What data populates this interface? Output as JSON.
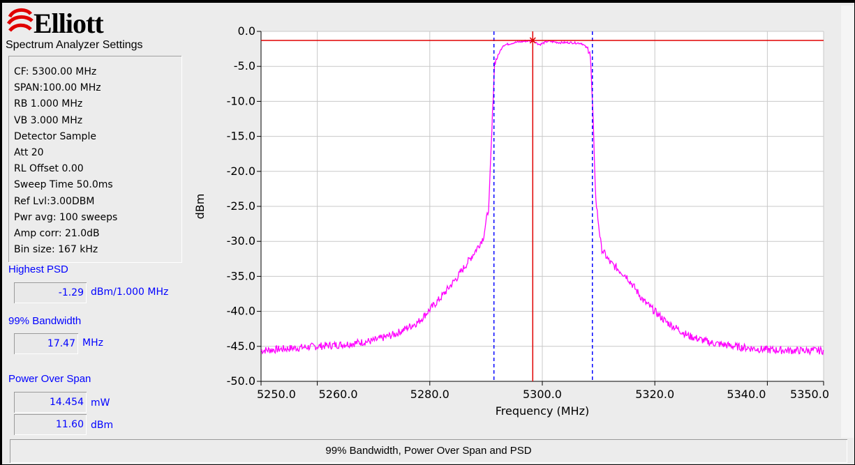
{
  "brand": {
    "name": "Elliott"
  },
  "settings": {
    "title": "Spectrum Analyzer Settings",
    "items": [
      "CF: 5300.00 MHz",
      "SPAN:100.00 MHz",
      "RB 1.000 MHz",
      "VB 3.000 MHz",
      "Detector Sample",
      "Att 20",
      "RL Offset 0.00",
      "Sweep Time 50.0ms",
      "Ref Lvl:3.00DBM",
      "Pwr avg: 100 sweeps",
      "Amp corr: 21.0dB",
      "Bin size: 167 kHz"
    ]
  },
  "results": {
    "psd_label": "Highest PSD",
    "psd_value": "-1.29",
    "psd_unit": "dBm/1.000 MHz",
    "bw_label": "99% Bandwidth",
    "bw_value": "17.47",
    "bw_unit": "MHz",
    "power_label": "Power Over Span",
    "power_mw_value": "14.454",
    "power_mw_unit": "mW",
    "power_dbm_value": "11.60",
    "power_dbm_unit": "dBm"
  },
  "status": {
    "text": "99% Bandwidth, Power Over Span and PSD"
  },
  "colors": {
    "trace": "#ff00ff",
    "marker": "#e00000",
    "bw_lines": "#0000ff",
    "grid": "#c8c8c8"
  },
  "chart_data": {
    "type": "line",
    "xlabel": "Frequency (MHz)",
    "ylabel": "dBm",
    "xlim": [
      5250,
      5350
    ],
    "ylim": [
      -50,
      0
    ],
    "x_ticks": [
      5250,
      5260,
      5280,
      5300,
      5320,
      5340,
      5350
    ],
    "x_tick_labels": [
      "5250.0",
      "5260.0",
      "5280.0",
      "5300.0",
      "5320.0",
      "5340.0",
      "5350.0"
    ],
    "y_ticks": [
      0,
      -5,
      -10,
      -15,
      -20,
      -25,
      -30,
      -35,
      -40,
      -45,
      -50
    ],
    "y_tick_labels": [
      "0.0",
      "-5.0",
      "-10.0",
      "-15.0",
      "-20.0",
      "-25.0",
      "-30.0",
      "-35.0",
      "-40.0",
      "-45.0",
      "-50.0"
    ],
    "grid": true,
    "series": [
      {
        "x": [
          5250,
          5255,
          5260,
          5265,
          5270,
          5274,
          5278,
          5282,
          5285,
          5288,
          5289.5,
          5290.5,
          5291,
          5291.5,
          5293,
          5295,
          5297,
          5298.3,
          5299.5,
          5301,
          5303,
          5305,
          5307,
          5308.5,
          5309,
          5309.5,
          5310.5,
          5312,
          5315,
          5318,
          5322,
          5326,
          5330,
          5335,
          5340,
          5345,
          5350
        ],
        "y": [
          -45.6,
          -45.3,
          -45,
          -44.7,
          -44.2,
          -43.2,
          -41.5,
          -38,
          -35,
          -31.5,
          -29.5,
          -25,
          -15,
          -4.5,
          -2,
          -1.6,
          -1.4,
          -1.3,
          -1.9,
          -1.4,
          -1.6,
          -1.6,
          -1.7,
          -2.8,
          -12,
          -24,
          -31,
          -33,
          -35,
          -38.5,
          -41.5,
          -43.5,
          -44.5,
          -45.1,
          -45.5,
          -45.6,
          -45.6
        ]
      }
    ],
    "bandwidth_edges": [
      5291.4,
      5308.9
    ],
    "marker": {
      "x": 5298.3,
      "y": -1.29
    }
  }
}
